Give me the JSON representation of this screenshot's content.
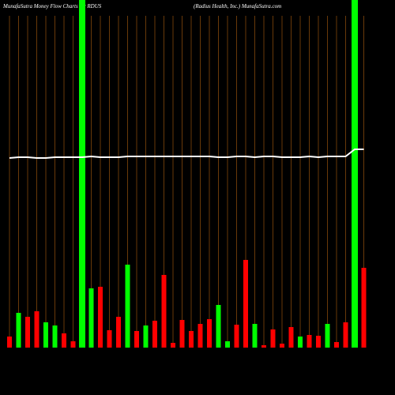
{
  "chart_data": {
    "type": "bar",
    "title": "MunafaSutra  Money Flow  Charts for RDUS",
    "subtitle": "(Radius Health,  Inc.) MunafaSutra.com",
    "categories": [
      null,
      null,
      null,
      null,
      null,
      null,
      null,
      null,
      null,
      null,
      null,
      null,
      null,
      null,
      null,
      null,
      null,
      null,
      null,
      null,
      null,
      null,
      null,
      null,
      null,
      null,
      null,
      null,
      null,
      null,
      null,
      null,
      null,
      null,
      null,
      null,
      null,
      null,
      null,
      null
    ],
    "values": [
      14,
      44,
      39,
      46,
      32,
      28,
      18,
      8,
      0,
      75,
      77,
      22,
      39,
      105,
      21,
      28,
      34,
      92,
      6,
      35,
      21,
      30,
      36,
      54,
      8,
      29,
      111,
      30,
      3,
      23,
      5,
      26,
      14,
      16,
      15,
      30,
      7,
      32,
      0,
      101
    ],
    "colors": [
      "#ff0000",
      "#00ff00",
      "#ff0000",
      "#ff0000",
      "#00ff00",
      "#00ff00",
      "#ff0000",
      "#ff0000",
      "#00ff00",
      "#00ff00",
      "#ff0000",
      "#ff0000",
      "#ff0000",
      "#00ff00",
      "#ff0000",
      "#00ff00",
      "#ff0000",
      "#ff0000",
      "#ff0000",
      "#ff0000",
      "#ff0000",
      "#ff0000",
      "#ff0000",
      "#00ff00",
      "#00ff00",
      "#ff0000",
      "#ff0000",
      "#00ff00",
      "#ff0000",
      "#ff0000",
      "#ff0000",
      "#ff0000",
      "#00ff00",
      "#ff0000",
      "#ff0000",
      "#00ff00",
      "#ff0000",
      "#ff0000",
      "#00ff00",
      "#ff0000"
    ],
    "line": {
      "color": "#ffffff",
      "values": [
        240,
        241,
        241,
        240,
        240,
        241,
        241,
        241,
        241,
        242,
        241,
        241,
        241,
        242,
        242,
        242,
        242,
        242,
        242,
        242,
        242,
        242,
        242,
        241,
        241,
        242,
        242,
        241,
        242,
        242,
        241,
        241,
        241,
        242,
        241,
        242,
        242,
        242,
        251,
        251
      ]
    },
    "highlight": [
      8,
      38
    ],
    "highlight_color": "#00ff00",
    "grid_color": "#b06010",
    "ylim": [
      0,
      440
    ]
  }
}
